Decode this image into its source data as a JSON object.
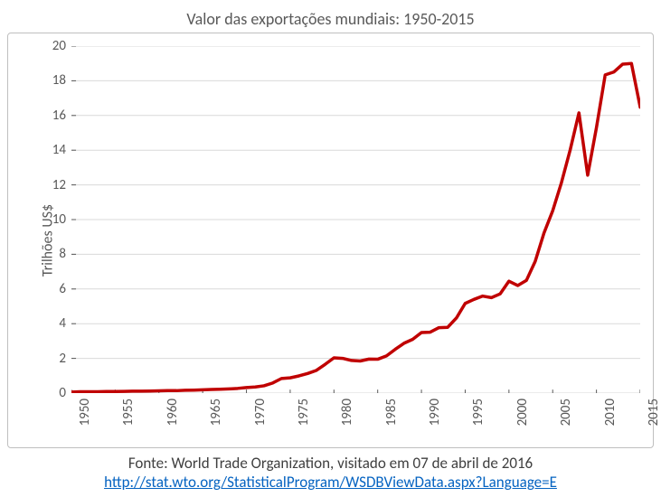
{
  "chart": {
    "type": "line",
    "title": "Valor das exportações mundiais: 1950-2015",
    "title_fontsize": 18,
    "ylabel": "Trilhões US$",
    "ylabel_fontsize": 16,
    "background_color": "#ffffff",
    "frame_border_color": "#bfbfbf",
    "grid_color": "#d9d9d9",
    "axis_label_color": "#595959",
    "line_color": "#c00000",
    "line_width": 3.5,
    "xlim": [
      1950,
      2015
    ],
    "ylim": [
      0,
      20
    ],
    "xtick_step": 5,
    "ytick_step": 2,
    "xticks": [
      1950,
      1955,
      1960,
      1965,
      1970,
      1975,
      1980,
      1985,
      1990,
      1995,
      2000,
      2005,
      2010,
      2015
    ],
    "yticks": [
      0,
      2,
      4,
      6,
      8,
      10,
      12,
      14,
      16,
      18,
      20
    ],
    "years": [
      1950,
      1951,
      1952,
      1953,
      1954,
      1955,
      1956,
      1957,
      1958,
      1959,
      1960,
      1961,
      1962,
      1963,
      1964,
      1965,
      1966,
      1967,
      1968,
      1969,
      1970,
      1971,
      1972,
      1973,
      1974,
      1975,
      1976,
      1977,
      1978,
      1979,
      1980,
      1981,
      1982,
      1983,
      1984,
      1985,
      1986,
      1987,
      1988,
      1989,
      1990,
      1991,
      1992,
      1993,
      1994,
      1995,
      1996,
      1997,
      1998,
      1999,
      2000,
      2001,
      2002,
      2003,
      2004,
      2005,
      2006,
      2007,
      2008,
      2009,
      2010,
      2011,
      2012,
      2013,
      2014,
      2015
    ],
    "values": [
      0.06,
      0.08,
      0.08,
      0.08,
      0.09,
      0.09,
      0.1,
      0.11,
      0.11,
      0.12,
      0.13,
      0.14,
      0.14,
      0.16,
      0.17,
      0.19,
      0.21,
      0.22,
      0.24,
      0.27,
      0.32,
      0.35,
      0.42,
      0.58,
      0.84,
      0.88,
      0.99,
      1.13,
      1.31,
      1.66,
      2.03,
      2.0,
      1.88,
      1.85,
      1.96,
      1.95,
      2.14,
      2.52,
      2.87,
      3.1,
      3.49,
      3.51,
      3.77,
      3.79,
      4.33,
      5.17,
      5.4,
      5.59,
      5.5,
      5.72,
      6.45,
      6.2,
      6.5,
      7.59,
      9.22,
      10.51,
      12.13,
      14.02,
      16.15,
      12.56,
      15.3,
      18.34,
      18.51,
      18.96,
      19.0,
      16.48
    ]
  },
  "footer": {
    "source": "Fonte: World Trade Organization, visitado em 07 de abril de 2016",
    "link": "http://stat.wto.org/StatisticalProgram/WSDBViewData.aspx?Language=E",
    "source_color": "#404040",
    "link_color": "#0563c1",
    "fontsize": 17
  }
}
